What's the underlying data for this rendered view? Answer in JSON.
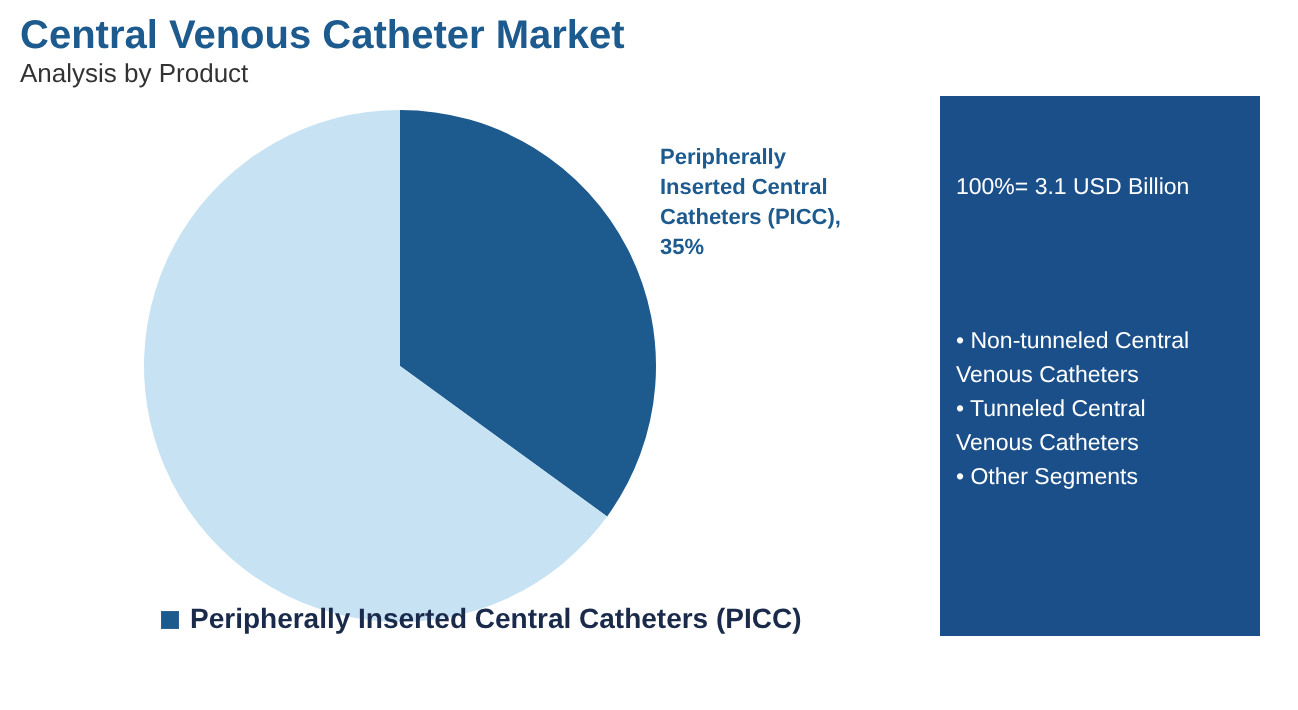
{
  "chart_data": {
    "type": "pie",
    "title": "Central Venous Catheter Market",
    "subtitle": "Analysis by Product",
    "categories": [
      "Peripherally Inserted Central Catheters (PICC)",
      null
    ],
    "values": [
      35,
      65
    ],
    "colors": [
      "#1d5a8e",
      "#c6e2f3"
    ],
    "value_labels": [
      "Peripherally Inserted Central Catheters (PICC), 35%",
      null
    ],
    "legend": "bottom",
    "annotations": [
      "100%= 3.1 USD Billion",
      "• Non-tunneled Central Venous Catheters",
      "• Tunneled Central Venous Catheters",
      "• Other Segments"
    ]
  }
}
